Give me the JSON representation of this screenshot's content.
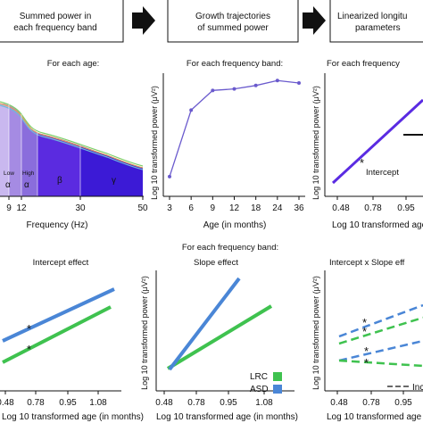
{
  "header": {
    "box1": [
      "Summed power in",
      "each frequency band"
    ],
    "box2": [
      "Growth trajectories",
      "of summed power"
    ],
    "box3": [
      "Linearized longitu",
      "parameters"
    ]
  },
  "panel_a": {
    "title": "For each age:",
    "band_labels": [
      "Low",
      "High",
      "α",
      "α",
      "β",
      "γ"
    ],
    "x_ticks": [
      "9",
      "12",
      "30",
      "50"
    ],
    "xlabel": "Frequency (Hz)"
  },
  "panel_b": {
    "title": "For each frequency band:",
    "ylabel": "Log 10 transformed power (μV²)",
    "xlabel": "Age (in months)"
  },
  "panel_c": {
    "title": "For each frequency",
    "ylabel": "Log 10 transformed power (μV²)",
    "xlabel": "Log 10 transformed age (in",
    "x_ticks": [
      "0.48",
      "0.78",
      "0.95"
    ],
    "annotation": "Intercept"
  },
  "section_title": "For each frequency band:",
  "panel_d": {
    "title": "Intercept effect",
    "x_ticks": [
      "0.48",
      "0.78",
      "0.95",
      "1.08"
    ],
    "xlabel": "Log 10 transformed age (in months)"
  },
  "panel_e": {
    "title": "Slope effect",
    "ylabel": "Log 10 transformed power (μV²)",
    "x_ticks": [
      "0.48",
      "0.78",
      "0.95",
      "1.08"
    ],
    "xlabel": "Log 10 transformed age (in months)",
    "legend": [
      {
        "label": "LRC",
        "color": "#3fc24f"
      },
      {
        "label": "ASD",
        "color": "#4a86d6"
      }
    ]
  },
  "panel_f": {
    "title": "Intercept x Slope eff",
    "ylabel": "Log 10 transformed power (μV²)",
    "x_ticks": [
      "0.48",
      "0.78",
      "0.95"
    ],
    "xlabel": "Log 10 transformed age",
    "legend_partial": "Inc"
  },
  "colors": {
    "lrc": "#3fc24f",
    "asd": "#4a86d6",
    "trajectory": "#6a5acd",
    "linear_fit": "#5a2be2"
  },
  "chart_data": [
    {
      "type": "line",
      "title": "For each frequency band:",
      "xlabel": "Age (in months)",
      "ylabel": "Log 10 transformed power (μV²)",
      "categories": [
        "3",
        "6",
        "9",
        "12",
        "18",
        "24",
        "36"
      ],
      "values": [
        1.0,
        2.35,
        2.75,
        2.78,
        2.85,
        2.95,
        2.9
      ],
      "ylim": [
        0.6,
        3.1
      ]
    }
  ]
}
